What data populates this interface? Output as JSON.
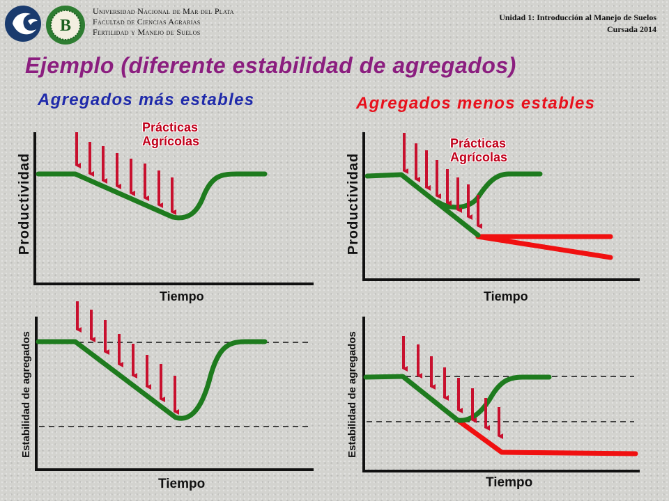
{
  "header": {
    "university_line1": "Universidad Nacional de Mar del Plata",
    "university_line2": "Facultad de Ciencias Agrarias",
    "university_line3": "Fertilidad y Manejo de Suelos",
    "unit_line1": "Unidad 1: Introducción al Manejo de Suelos",
    "unit_line2": "Cursada 2014",
    "logo_left_icon": "wave-logo-icon",
    "logo_right_icon": "faculty-seal-icon",
    "seal_letter": "B"
  },
  "title": "Ejemplo (diferente estabilidad de agregados)",
  "left_heading": "Agregados más estables",
  "right_heading": "Agregados menos estables",
  "labels": {
    "productividad": "Productividad",
    "estabilidad": "Estabilidad de agregados",
    "tiempo": "Tiempo",
    "practicas_1": "Prácticas",
    "practicas_2": "Agrícolas"
  },
  "colors": {
    "title": "#8B1E7F",
    "left_heading": "#1F2AAA",
    "right_heading": "#E8101C",
    "green_line": "#1E7B1E",
    "red_line": "#F01010",
    "arrow": "#C8102E"
  }
}
